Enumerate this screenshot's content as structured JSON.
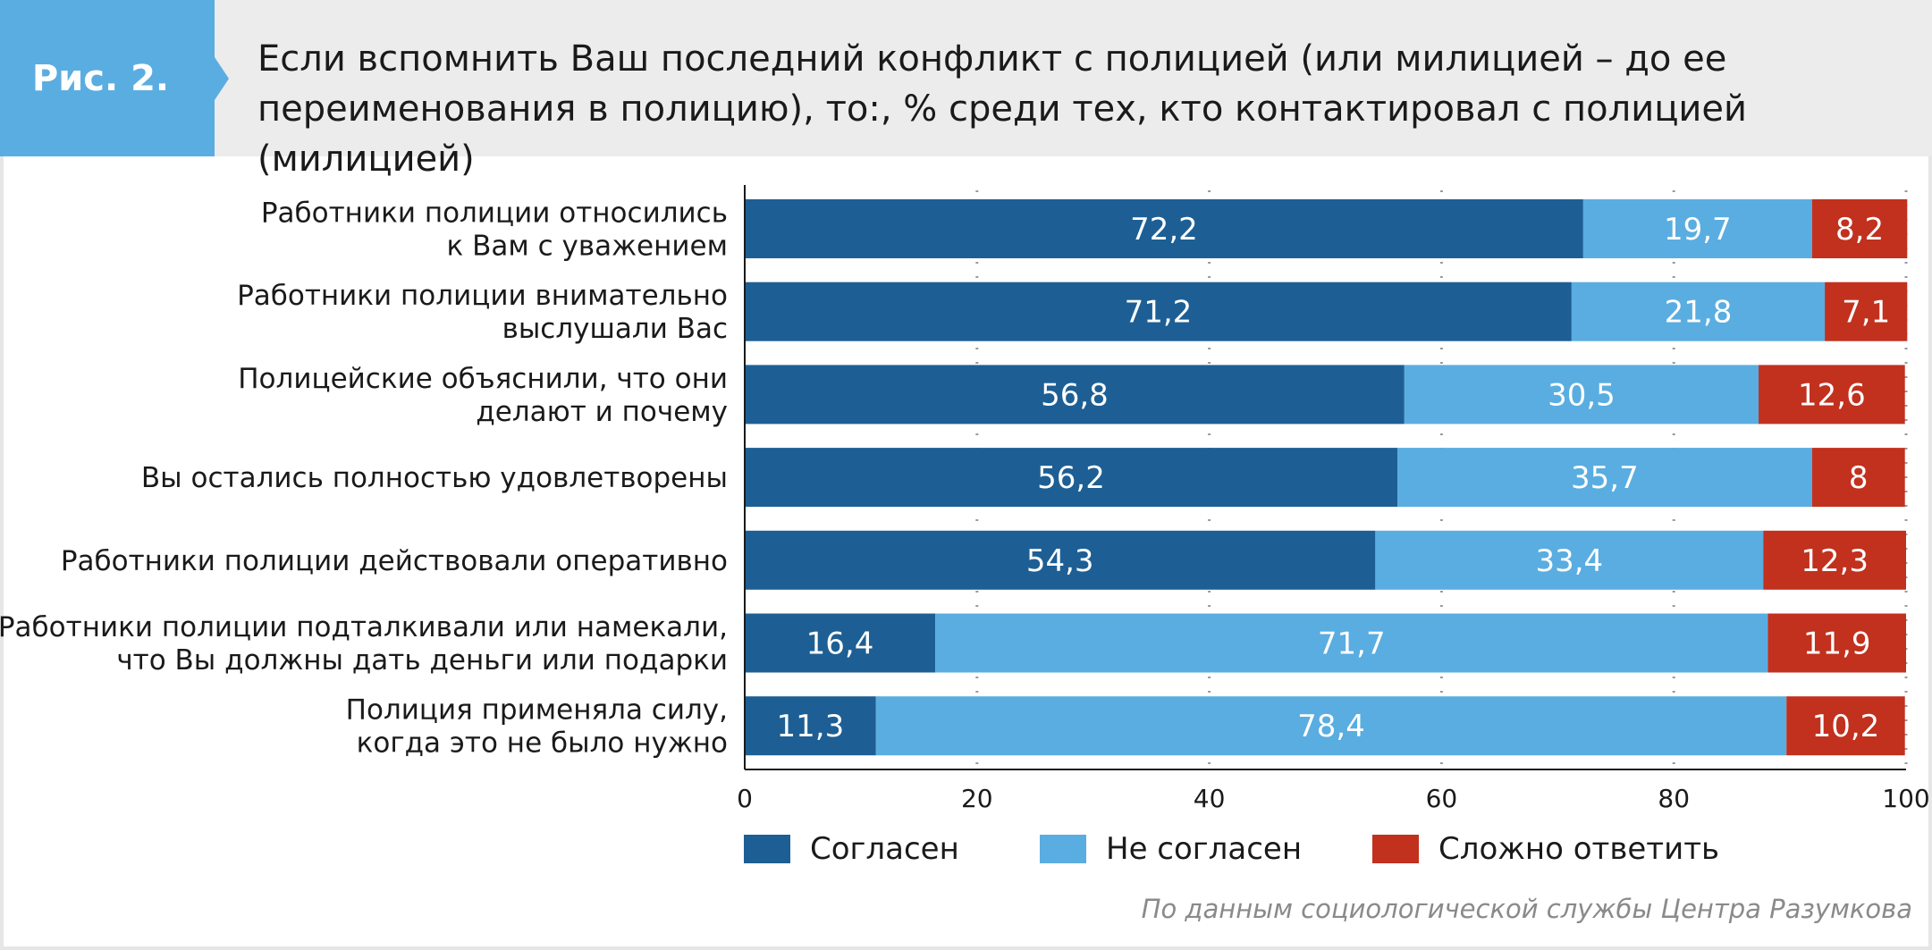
{
  "header": {
    "badge": "Рис. 2.",
    "title_line1": "Если вспомнить Ваш последний конфликт с полицией (или милицией – до ее",
    "title_line2": "переименования в полицию), то:, % среди тех, кто контактировал с полицией (милицией)"
  },
  "source": "По данным социологической службы Центра Разумкова",
  "chart_data": {
    "type": "bar",
    "orientation": "horizontal",
    "stacked": true,
    "categories": [
      [
        "Работники полиции относились",
        "к Вам с уважением"
      ],
      [
        "Работники полиции внимательно",
        "выслушали Вас"
      ],
      [
        "Полицейские объяснили, что они",
        "делают и почему"
      ],
      [
        "Вы остались полностью удовлетворены"
      ],
      [
        "Работники полиции действовали оперативно"
      ],
      [
        "Работники полиции подталкивали или намекали,",
        "что Вы должны дать деньги или подарки"
      ],
      [
        "Полиция применяла силу,",
        "когда это не было нужно"
      ]
    ],
    "series": [
      {
        "name": "Согласен",
        "color": "#1d5f94",
        "values": [
          72.2,
          71.2,
          56.8,
          56.2,
          54.3,
          16.4,
          11.3
        ],
        "labels": [
          "72,2",
          "71,2",
          "56,8",
          "56,2",
          "54,3",
          "16,4",
          "11,3"
        ]
      },
      {
        "name": "Не согласен",
        "color": "#5aade0",
        "values": [
          19.7,
          21.8,
          30.5,
          35.7,
          33.4,
          71.7,
          78.4
        ],
        "labels": [
          "19,7",
          "21,8",
          "30,5",
          "35,7",
          "33,4",
          "71,7",
          "78,4"
        ]
      },
      {
        "name": "Сложно ответить",
        "color": "#c1311e",
        "values": [
          8.2,
          7.1,
          12.6,
          8,
          12.3,
          11.9,
          10.2
        ],
        "labels": [
          "8,2",
          "7,1",
          "12,6",
          "8",
          "12,3",
          "11,9",
          "10,2"
        ]
      }
    ],
    "xlim": [
      0,
      100
    ],
    "xticks": [
      0,
      20,
      40,
      60,
      80,
      100
    ],
    "grid": true,
    "legend": "bottom"
  }
}
